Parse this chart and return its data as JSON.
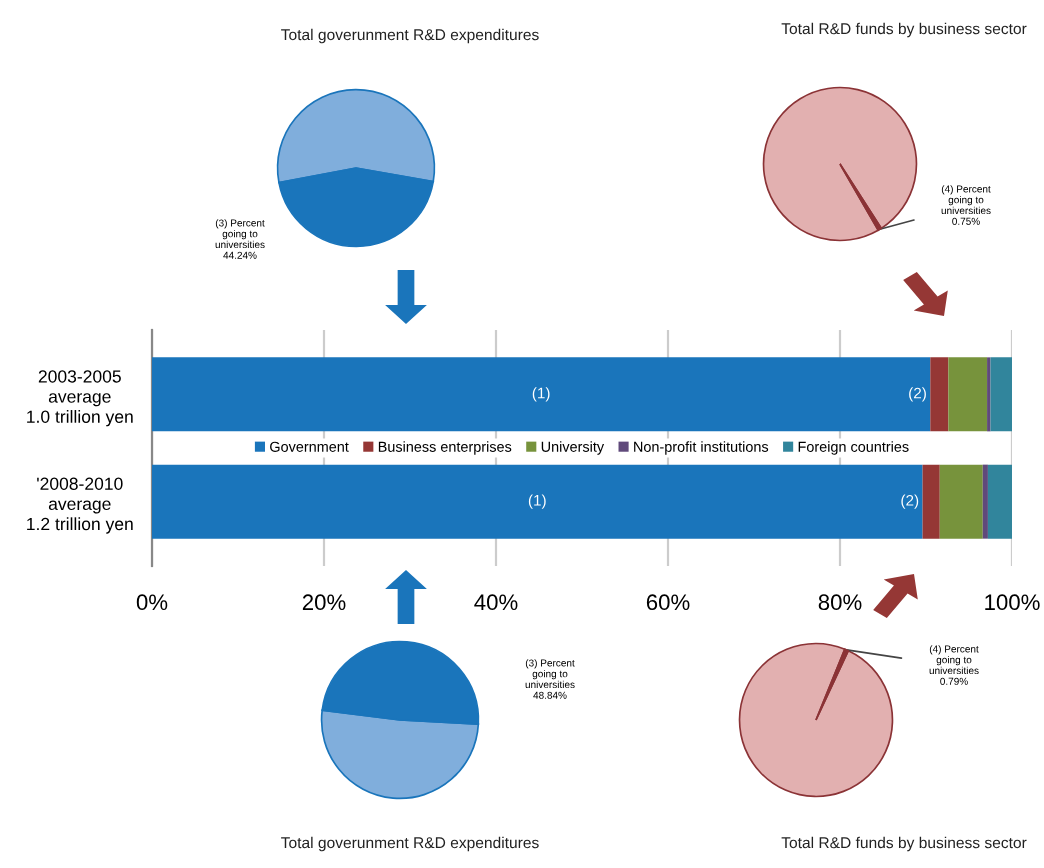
{
  "chart_data": [
    {
      "type": "pie",
      "title": "Total goverunment R&D expenditures",
      "categories": [
        null,
        null
      ],
      "values": [
        44.24,
        55.76
      ],
      "colors": [
        "#1a75bb",
        "#80aedc"
      ],
      "annotations": [
        "(3) Percent\ngoing to\nuniversities\n44.24%"
      ]
    },
    {
      "type": "pie",
      "title": "Total R&D funds by business sector",
      "categories": [
        null,
        null
      ],
      "values": [
        0.75,
        99.25
      ],
      "colors": [
        "#8b3336",
        "#e2b0b0"
      ],
      "annotations": [
        "(4) Percent\ngoing to\nuniversities\n0.75%"
      ]
    },
    {
      "type": "bar",
      "orientation": "horizontal",
      "stacked": true,
      "categories": [
        "2003-2005\naverage\n1.0 trillion yen",
        "'2008-2010\naverage\n1.2 trillion yen"
      ],
      "series": [
        {
          "name": "Government",
          "color": "#1a75bb",
          "values": [
            90.5,
            89.6
          ]
        },
        {
          "name": "Business enterprises",
          "color": "#953735",
          "values": [
            2.1,
            2.0
          ]
        },
        {
          "name": "University",
          "color": "#77933c",
          "values": [
            4.5,
            5.0
          ]
        },
        {
          "name": "Non-profit institutions",
          "color": "#604a7b",
          "values": [
            0.4,
            0.6
          ]
        },
        {
          "name": "Foreign countries",
          "color": "#31859c",
          "values": [
            2.5,
            2.8
          ]
        }
      ],
      "xlim": [
        0,
        100
      ],
      "xticks": [
        {
          "value": 0,
          "label": "0%"
        },
        {
          "value": 20,
          "label": "20%"
        },
        {
          "value": 40,
          "label": "40%"
        },
        {
          "value": 60,
          "label": "60%"
        },
        {
          "value": 80,
          "label": "80%"
        },
        {
          "value": 100,
          "label": "100%"
        }
      ],
      "grid": "x",
      "legend": "center",
      "annotations": [
        "(1)",
        {
          "text": "(2)",
          "x": 90.5,
          "y": "2003-2005\naverage\n1.0 trillion yen"
        },
        "(1)",
        {
          "text": "(2)",
          "x": 89.6,
          "y": "'2008-2010\naverage\n1.2 trillion yen"
        }
      ]
    },
    {
      "type": "pie",
      "title": "Total goverunment R&D expenditures",
      "categories": [
        null,
        null
      ],
      "values": [
        48.84,
        51.16
      ],
      "colors": [
        "#1a75bb",
        "#80aedc"
      ],
      "annotations": [
        "(3) Percent\ngoing to\nuniversities\n48.84%"
      ]
    },
    {
      "type": "pie",
      "title": "Total R&D funds by business sector",
      "categories": [
        null,
        null
      ],
      "values": [
        0.79,
        99.21
      ],
      "colors": [
        "#8b3336",
        "#e2b0b0"
      ],
      "annotations": [
        "(4) Percent\ngoing to\nuniversities\n0.79%"
      ]
    }
  ]
}
